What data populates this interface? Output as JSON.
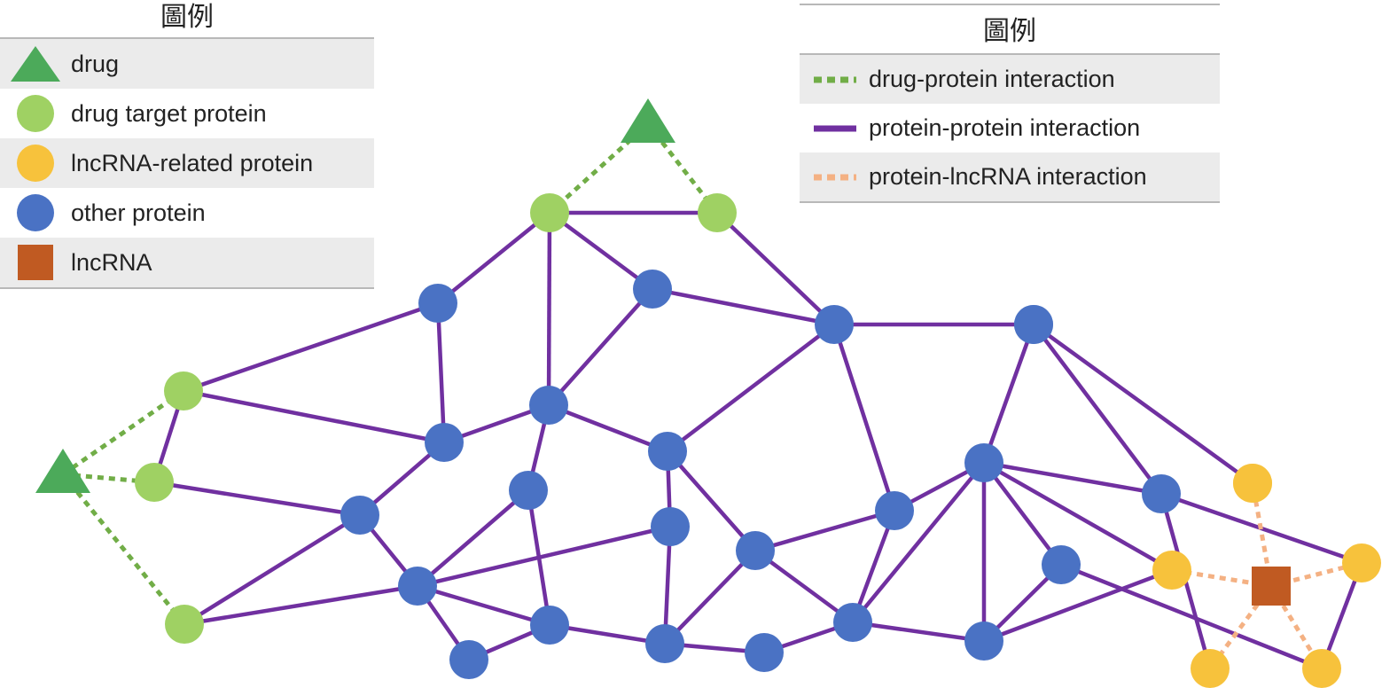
{
  "legend_nodes": {
    "title": "圖例",
    "items": [
      {
        "label": "drug",
        "shape": "triangle",
        "color": "#4caa5a"
      },
      {
        "label": "drug target protein",
        "shape": "circle",
        "color": "#9fd163"
      },
      {
        "label": "lncRNA-related protein",
        "shape": "circle",
        "color": "#f7c23c"
      },
      {
        "label": "other protein",
        "shape": "circle",
        "color": "#4a72c4"
      },
      {
        "label": "lncRNA",
        "shape": "square",
        "color": "#c05a22"
      }
    ]
  },
  "legend_edges": {
    "title": "圖例",
    "items": [
      {
        "label": "drug-protein interaction",
        "style": "dotted",
        "color": "#71ad47"
      },
      {
        "label": "protein-protein interaction",
        "style": "solid",
        "color": "#7030a0"
      },
      {
        "label": "protein-lncRNA interaction",
        "style": "dotted",
        "color": "#f4b183"
      }
    ]
  },
  "network": {
    "node_types": {
      "drug": "#4caa5a",
      "target": "#9fd163",
      "lncprot": "#f7c23c",
      "other": "#4a72c4",
      "lncrna": "#c05a22"
    },
    "edge_types": {
      "dp": "#71ad47",
      "pp": "#7030a0",
      "pl": "#f4b183"
    },
    "nodes": [
      {
        "id": "D1",
        "type": "drug"
      },
      {
        "id": "D2",
        "type": "drug"
      },
      {
        "id": "T1",
        "type": "target"
      },
      {
        "id": "T2",
        "type": "target"
      },
      {
        "id": "T3",
        "type": "target"
      },
      {
        "id": "T4",
        "type": "target"
      },
      {
        "id": "T5",
        "type": "target"
      },
      {
        "id": "O1",
        "type": "other"
      },
      {
        "id": "O2",
        "type": "other"
      },
      {
        "id": "O3",
        "type": "other"
      },
      {
        "id": "O4",
        "type": "other"
      },
      {
        "id": "O5",
        "type": "other"
      },
      {
        "id": "O6",
        "type": "other"
      },
      {
        "id": "O7",
        "type": "other"
      },
      {
        "id": "O8",
        "type": "other"
      },
      {
        "id": "O9",
        "type": "other"
      },
      {
        "id": "O10",
        "type": "other"
      },
      {
        "id": "O11",
        "type": "other"
      },
      {
        "id": "O12",
        "type": "other"
      },
      {
        "id": "O13",
        "type": "other"
      },
      {
        "id": "O14",
        "type": "other"
      },
      {
        "id": "O15",
        "type": "other"
      },
      {
        "id": "O16",
        "type": "other"
      },
      {
        "id": "O17",
        "type": "other"
      },
      {
        "id": "O18",
        "type": "other"
      },
      {
        "id": "O19",
        "type": "other"
      },
      {
        "id": "O20",
        "type": "other"
      },
      {
        "id": "O21",
        "type": "other"
      },
      {
        "id": "O22",
        "type": "other"
      },
      {
        "id": "O23",
        "type": "other"
      },
      {
        "id": "O24",
        "type": "other"
      },
      {
        "id": "Y1",
        "type": "lncprot"
      },
      {
        "id": "Y2",
        "type": "lncprot"
      },
      {
        "id": "Y3",
        "type": "lncprot"
      },
      {
        "id": "Y4",
        "type": "lncprot"
      },
      {
        "id": "Y5",
        "type": "lncprot"
      },
      {
        "id": "L1",
        "type": "lncrna"
      }
    ],
    "edges": [
      [
        "D1",
        "T1",
        "dp"
      ],
      [
        "D1",
        "T2",
        "dp"
      ],
      [
        "D2",
        "T3",
        "dp"
      ],
      [
        "D2",
        "T4",
        "dp"
      ],
      [
        "D2",
        "T5",
        "dp"
      ],
      [
        "T1",
        "T2",
        "pp"
      ],
      [
        "T1",
        "O1",
        "pp"
      ],
      [
        "T1",
        "O2",
        "pp"
      ],
      [
        "T1",
        "O3",
        "pp"
      ],
      [
        "T2",
        "O4",
        "pp"
      ],
      [
        "T3",
        "T4",
        "pp"
      ],
      [
        "T3",
        "O1",
        "pp"
      ],
      [
        "T3",
        "O5",
        "pp"
      ],
      [
        "T4",
        "O7",
        "pp"
      ],
      [
        "T5",
        "O7",
        "pp"
      ],
      [
        "T5",
        "O8",
        "pp"
      ],
      [
        "O1",
        "O5",
        "pp"
      ],
      [
        "O2",
        "O4",
        "pp"
      ],
      [
        "O2",
        "O3",
        "pp"
      ],
      [
        "O3",
        "O5",
        "pp"
      ],
      [
        "O3",
        "O6",
        "pp"
      ],
      [
        "O3",
        "O9",
        "pp"
      ],
      [
        "O4",
        "O6",
        "pp"
      ],
      [
        "O4",
        "O11",
        "pp"
      ],
      [
        "O4",
        "O12",
        "pp"
      ],
      [
        "O5",
        "O7",
        "pp"
      ],
      [
        "O6",
        "O10",
        "pp"
      ],
      [
        "O6",
        "O13",
        "pp"
      ],
      [
        "O7",
        "O8",
        "pp"
      ],
      [
        "O8",
        "O9",
        "pp"
      ],
      [
        "O8",
        "O10",
        "pp"
      ],
      [
        "O8",
        "O13",
        "pp"
      ],
      [
        "O9",
        "O14",
        "pp"
      ],
      [
        "O9",
        "O15",
        "pp"
      ],
      [
        "O10",
        "O13",
        "pp"
      ],
      [
        "O10",
        "O18",
        "pp"
      ],
      [
        "O11",
        "O12",
        "pp"
      ],
      [
        "O12",
        "O16",
        "pp"
      ],
      [
        "O12",
        "O17",
        "pp"
      ],
      [
        "O12",
        "Y4",
        "pp"
      ],
      [
        "O13",
        "O17",
        "pp"
      ],
      [
        "O15",
        "O16",
        "pp"
      ],
      [
        "O16",
        "O18",
        "pp"
      ],
      [
        "O17",
        "O20",
        "pp"
      ],
      [
        "O18",
        "O20",
        "pp"
      ],
      [
        "O20",
        "O21",
        "pp"
      ],
      [
        "O21",
        "O22",
        "pp"
      ],
      [
        "O21",
        "O23",
        "pp"
      ],
      [
        "O21",
        "O24",
        "pp"
      ],
      [
        "O21",
        "Y2",
        "pp"
      ],
      [
        "O22",
        "Y1",
        "pp"
      ],
      [
        "O23",
        "O24",
        "pp"
      ],
      [
        "O24",
        "Y2",
        "pp"
      ],
      [
        "O19",
        "O22",
        "pp"
      ],
      [
        "O19",
        "O24",
        "pp"
      ],
      [
        "O19",
        "Y2",
        "pp"
      ],
      [
        "O19",
        "O23",
        "pp"
      ],
      [
        "O19",
        "O20",
        "pp"
      ],
      [
        "O23",
        "Y5",
        "pp"
      ],
      [
        "Y3",
        "O22",
        "pp"
      ],
      [
        "Y2",
        "Y4",
        "pp"
      ],
      [
        "Y3",
        "Y5",
        "pp"
      ],
      [
        "L1",
        "Y1",
        "pl"
      ],
      [
        "L1",
        "Y2",
        "pl"
      ],
      [
        "L1",
        "Y3",
        "pl"
      ],
      [
        "L1",
        "Y4",
        "pl"
      ],
      [
        "L1",
        "Y5",
        "pl"
      ]
    ]
  }
}
